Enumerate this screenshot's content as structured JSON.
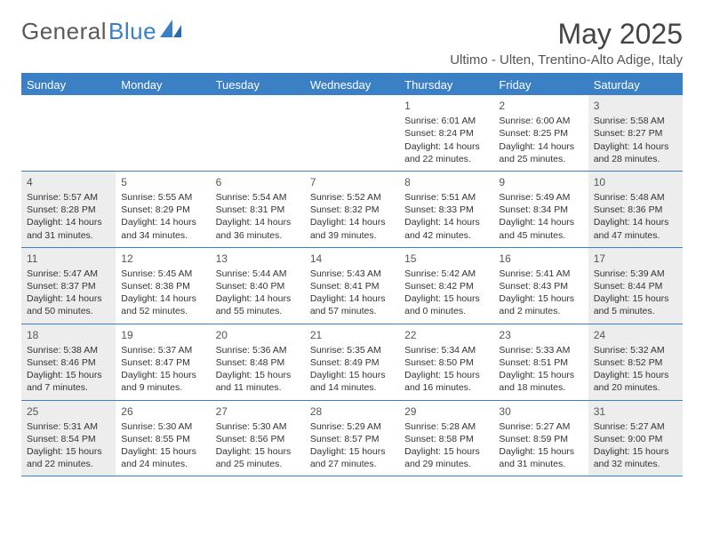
{
  "logo": {
    "text1": "General",
    "text2": "Blue"
  },
  "title": "May 2025",
  "location": "Ultimo - Ulten, Trentino-Alto Adige, Italy",
  "colors": {
    "header_bg": "#3b7fc4",
    "shaded_bg": "#ededed",
    "text": "#333333",
    "title_text": "#444444",
    "border": "#3b7fc4"
  },
  "typography": {
    "title_fontsize": 32,
    "location_fontsize": 15,
    "dayheader_fontsize": 13,
    "daynum_fontsize": 12,
    "detail_fontsize": 10.5
  },
  "day_headers": [
    "Sunday",
    "Monday",
    "Tuesday",
    "Wednesday",
    "Thursday",
    "Friday",
    "Saturday"
  ],
  "weeks": [
    [
      {
        "empty": true
      },
      {
        "empty": true
      },
      {
        "empty": true
      },
      {
        "empty": true
      },
      {
        "num": "1",
        "sunrise": "Sunrise: 6:01 AM",
        "sunset": "Sunset: 8:24 PM",
        "daylight": "Daylight: 14 hours and 22 minutes."
      },
      {
        "num": "2",
        "sunrise": "Sunrise: 6:00 AM",
        "sunset": "Sunset: 8:25 PM",
        "daylight": "Daylight: 14 hours and 25 minutes."
      },
      {
        "num": "3",
        "sunrise": "Sunrise: 5:58 AM",
        "sunset": "Sunset: 8:27 PM",
        "daylight": "Daylight: 14 hours and 28 minutes.",
        "shaded": true
      }
    ],
    [
      {
        "num": "4",
        "sunrise": "Sunrise: 5:57 AM",
        "sunset": "Sunset: 8:28 PM",
        "daylight": "Daylight: 14 hours and 31 minutes.",
        "shaded": true
      },
      {
        "num": "5",
        "sunrise": "Sunrise: 5:55 AM",
        "sunset": "Sunset: 8:29 PM",
        "daylight": "Daylight: 14 hours and 34 minutes."
      },
      {
        "num": "6",
        "sunrise": "Sunrise: 5:54 AM",
        "sunset": "Sunset: 8:31 PM",
        "daylight": "Daylight: 14 hours and 36 minutes."
      },
      {
        "num": "7",
        "sunrise": "Sunrise: 5:52 AM",
        "sunset": "Sunset: 8:32 PM",
        "daylight": "Daylight: 14 hours and 39 minutes."
      },
      {
        "num": "8",
        "sunrise": "Sunrise: 5:51 AM",
        "sunset": "Sunset: 8:33 PM",
        "daylight": "Daylight: 14 hours and 42 minutes."
      },
      {
        "num": "9",
        "sunrise": "Sunrise: 5:49 AM",
        "sunset": "Sunset: 8:34 PM",
        "daylight": "Daylight: 14 hours and 45 minutes."
      },
      {
        "num": "10",
        "sunrise": "Sunrise: 5:48 AM",
        "sunset": "Sunset: 8:36 PM",
        "daylight": "Daylight: 14 hours and 47 minutes.",
        "shaded": true
      }
    ],
    [
      {
        "num": "11",
        "sunrise": "Sunrise: 5:47 AM",
        "sunset": "Sunset: 8:37 PM",
        "daylight": "Daylight: 14 hours and 50 minutes.",
        "shaded": true
      },
      {
        "num": "12",
        "sunrise": "Sunrise: 5:45 AM",
        "sunset": "Sunset: 8:38 PM",
        "daylight": "Daylight: 14 hours and 52 minutes."
      },
      {
        "num": "13",
        "sunrise": "Sunrise: 5:44 AM",
        "sunset": "Sunset: 8:40 PM",
        "daylight": "Daylight: 14 hours and 55 minutes."
      },
      {
        "num": "14",
        "sunrise": "Sunrise: 5:43 AM",
        "sunset": "Sunset: 8:41 PM",
        "daylight": "Daylight: 14 hours and 57 minutes."
      },
      {
        "num": "15",
        "sunrise": "Sunrise: 5:42 AM",
        "sunset": "Sunset: 8:42 PM",
        "daylight": "Daylight: 15 hours and 0 minutes."
      },
      {
        "num": "16",
        "sunrise": "Sunrise: 5:41 AM",
        "sunset": "Sunset: 8:43 PM",
        "daylight": "Daylight: 15 hours and 2 minutes."
      },
      {
        "num": "17",
        "sunrise": "Sunrise: 5:39 AM",
        "sunset": "Sunset: 8:44 PM",
        "daylight": "Daylight: 15 hours and 5 minutes.",
        "shaded": true
      }
    ],
    [
      {
        "num": "18",
        "sunrise": "Sunrise: 5:38 AM",
        "sunset": "Sunset: 8:46 PM",
        "daylight": "Daylight: 15 hours and 7 minutes.",
        "shaded": true
      },
      {
        "num": "19",
        "sunrise": "Sunrise: 5:37 AM",
        "sunset": "Sunset: 8:47 PM",
        "daylight": "Daylight: 15 hours and 9 minutes."
      },
      {
        "num": "20",
        "sunrise": "Sunrise: 5:36 AM",
        "sunset": "Sunset: 8:48 PM",
        "daylight": "Daylight: 15 hours and 11 minutes."
      },
      {
        "num": "21",
        "sunrise": "Sunrise: 5:35 AM",
        "sunset": "Sunset: 8:49 PM",
        "daylight": "Daylight: 15 hours and 14 minutes."
      },
      {
        "num": "22",
        "sunrise": "Sunrise: 5:34 AM",
        "sunset": "Sunset: 8:50 PM",
        "daylight": "Daylight: 15 hours and 16 minutes."
      },
      {
        "num": "23",
        "sunrise": "Sunrise: 5:33 AM",
        "sunset": "Sunset: 8:51 PM",
        "daylight": "Daylight: 15 hours and 18 minutes."
      },
      {
        "num": "24",
        "sunrise": "Sunrise: 5:32 AM",
        "sunset": "Sunset: 8:52 PM",
        "daylight": "Daylight: 15 hours and 20 minutes.",
        "shaded": true
      }
    ],
    [
      {
        "num": "25",
        "sunrise": "Sunrise: 5:31 AM",
        "sunset": "Sunset: 8:54 PM",
        "daylight": "Daylight: 15 hours and 22 minutes.",
        "shaded": true
      },
      {
        "num": "26",
        "sunrise": "Sunrise: 5:30 AM",
        "sunset": "Sunset: 8:55 PM",
        "daylight": "Daylight: 15 hours and 24 minutes."
      },
      {
        "num": "27",
        "sunrise": "Sunrise: 5:30 AM",
        "sunset": "Sunset: 8:56 PM",
        "daylight": "Daylight: 15 hours and 25 minutes."
      },
      {
        "num": "28",
        "sunrise": "Sunrise: 5:29 AM",
        "sunset": "Sunset: 8:57 PM",
        "daylight": "Daylight: 15 hours and 27 minutes."
      },
      {
        "num": "29",
        "sunrise": "Sunrise: 5:28 AM",
        "sunset": "Sunset: 8:58 PM",
        "daylight": "Daylight: 15 hours and 29 minutes."
      },
      {
        "num": "30",
        "sunrise": "Sunrise: 5:27 AM",
        "sunset": "Sunset: 8:59 PM",
        "daylight": "Daylight: 15 hours and 31 minutes."
      },
      {
        "num": "31",
        "sunrise": "Sunrise: 5:27 AM",
        "sunset": "Sunset: 9:00 PM",
        "daylight": "Daylight: 15 hours and 32 minutes.",
        "shaded": true
      }
    ]
  ]
}
